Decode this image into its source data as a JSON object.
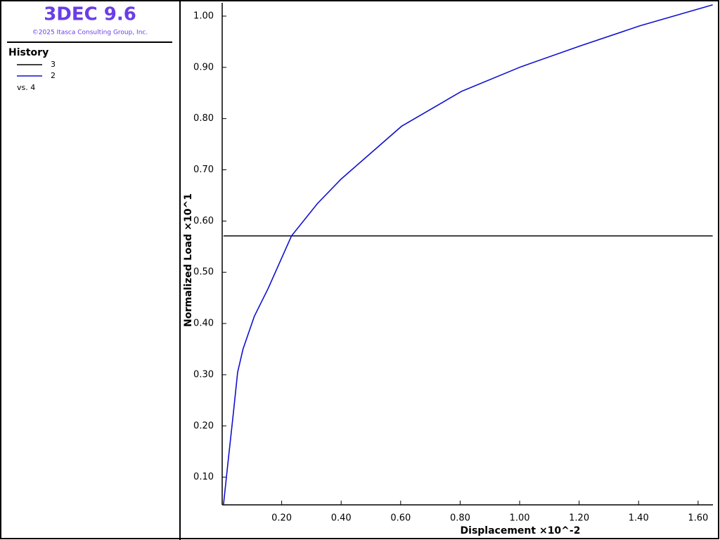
{
  "chart_data": {
    "type": "line",
    "title": "3DEC 9.6",
    "subtitle": "©2025 Itasca Consulting Group, Inc.",
    "legend_title": "History",
    "x_history": "vs. 4",
    "x_label": "Displacement ×10^-2",
    "y_label": "Normalized Load ×10^1",
    "x": [
      0.0045,
      0.019,
      0.037,
      0.052,
      0.07,
      0.108,
      0.155,
      0.233,
      0.32,
      0.4,
      0.603,
      0.804,
      1.004,
      1.204,
      1.404,
      1.649
    ],
    "series": [
      {
        "name": "3",
        "color": "#000000",
        "values": [
          0.571,
          0.571,
          0.571,
          0.571,
          0.571,
          0.571,
          0.571,
          0.571,
          0.571,
          0.571,
          0.571,
          0.571,
          0.571,
          0.571,
          0.571,
          0.571
        ]
      },
      {
        "name": "2",
        "color": "#1010d0",
        "values": [
          0.047,
          0.126,
          0.222,
          0.305,
          0.35,
          0.414,
          0.469,
          0.571,
          0.634,
          0.682,
          0.785,
          0.853,
          0.901,
          0.942,
          0.981,
          1.022
        ]
      }
    ],
    "xlim": [
      0,
      1.65
    ],
    "ylim": [
      0.046,
      1.026
    ],
    "xticks": [
      {
        "value": 0.2,
        "label": "0.20"
      },
      {
        "value": 0.4,
        "label": "0.40"
      },
      {
        "value": 0.6,
        "label": "0.60"
      },
      {
        "value": 0.8,
        "label": "0.80"
      },
      {
        "value": 1.0,
        "label": "1.00"
      },
      {
        "value": 1.2,
        "label": "1.20"
      },
      {
        "value": 1.4,
        "label": "1.40"
      },
      {
        "value": 1.6,
        "label": "1.60"
      }
    ],
    "yticks": [
      {
        "value": 0.1,
        "label": "0.10"
      },
      {
        "value": 0.2,
        "label": "0.20"
      },
      {
        "value": 0.3,
        "label": "0.30"
      },
      {
        "value": 0.4,
        "label": "0.40"
      },
      {
        "value": 0.5,
        "label": "0.50"
      },
      {
        "value": 0.6,
        "label": "0.60"
      },
      {
        "value": 0.7,
        "label": "0.70"
      },
      {
        "value": 0.8,
        "label": "0.80"
      },
      {
        "value": 0.9,
        "label": "0.90"
      },
      {
        "value": 1.0,
        "label": "1.00"
      }
    ]
  }
}
